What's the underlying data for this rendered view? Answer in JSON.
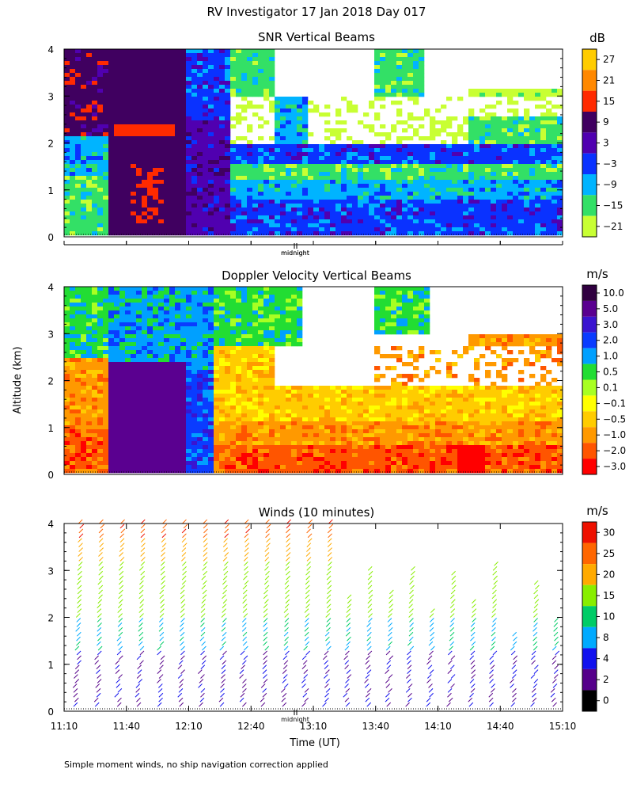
{
  "title": "RV Investigator  17 Jan 2018 Day 017",
  "footnote": "Simple moment winds, no ship navigation correction applied",
  "chart_data": [
    {
      "type": "heatmap",
      "title": "SNR Vertical Beams",
      "ylabel": "",
      "ylim": [
        0,
        4
      ],
      "yticks": [
        "0",
        "1",
        "2",
        "3",
        "4"
      ],
      "marker_label": "midnight",
      "colorbar": {
        "unit": "dB",
        "labels": [
          "27",
          "21",
          "15",
          "9",
          "3",
          "−3",
          "−9",
          "−15",
          "−21"
        ],
        "colors": [
          "#ffcc00",
          "#ff8800",
          "#ff2a00",
          "#400060",
          "#5000b0",
          "#0a32ff",
          "#00b4ff",
          "#33e066",
          "#c8ff33"
        ]
      }
    },
    {
      "type": "heatmap",
      "title": "Doppler Velocity Vertical Beams",
      "ylabel": "Altitude (km)",
      "ylim": [
        0,
        4
      ],
      "yticks": [
        "0",
        "1",
        "2",
        "3",
        "4"
      ],
      "marker_label": "midnight",
      "colorbar": {
        "unit": "m/s",
        "labels": [
          "10.0",
          "5.0",
          "3.0",
          "2.0",
          "1.0",
          "0.5",
          "0.1",
          "−0.1",
          "−0.5",
          "−1.0",
          "−2.0",
          "−3.0"
        ],
        "colors": [
          "#300040",
          "#5a0090",
          "#3a14d0",
          "#0a3cff",
          "#00a0ff",
          "#22dd33",
          "#a8ff22",
          "#ffff00",
          "#ffcc00",
          "#ff9900",
          "#ff5500",
          "#ff0000"
        ]
      }
    },
    {
      "type": "scatter",
      "title": "Winds (10 minutes)",
      "xlabel": "Time (UT)",
      "ylabel": "",
      "ylim": [
        0,
        4
      ],
      "yticks": [
        "0",
        "1",
        "2",
        "3",
        "4"
      ],
      "xticks": [
        "11:10",
        "11:40",
        "12:10",
        "12:40",
        "13:10",
        "13:40",
        "14:10",
        "14:40",
        "15:10"
      ],
      "marker_label": "midnight",
      "colorbar": {
        "unit": "m/s",
        "labels": [
          "30",
          "25",
          "20",
          "15",
          "10",
          "8",
          "4",
          "2",
          "0"
        ],
        "colors": [
          "#ee1100",
          "#ff6600",
          "#ffaa00",
          "#88ee00",
          "#00cc66",
          "#00aaff",
          "#1111ee",
          "#55008a",
          "#000000"
        ]
      }
    }
  ]
}
